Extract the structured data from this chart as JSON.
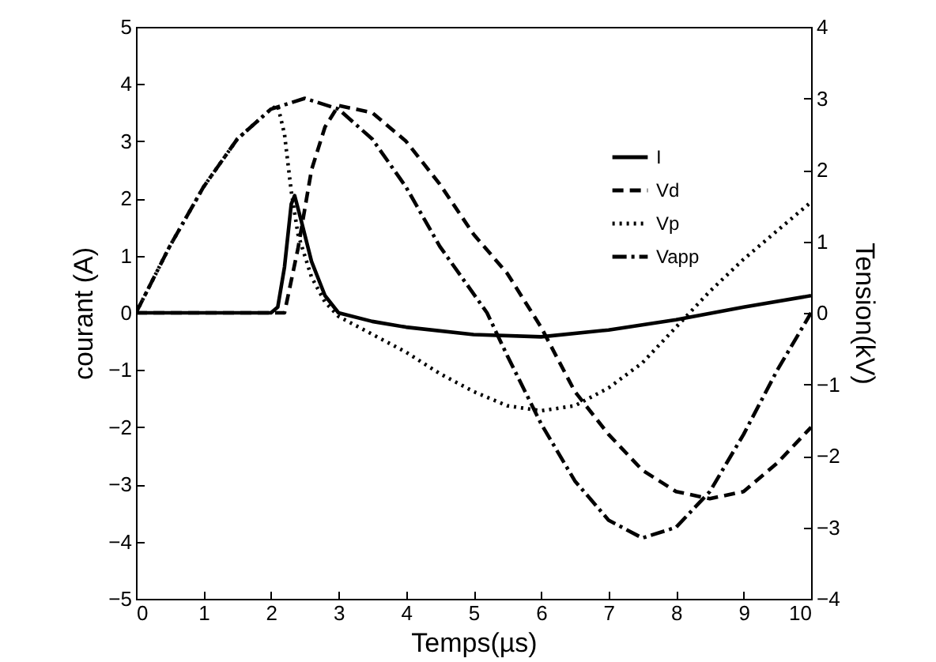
{
  "chart_data": {
    "type": "line",
    "xlabel": "Temps(µs)",
    "ylabel": "courant (A)",
    "y2label": "Tension(kV)",
    "xlim": [
      0,
      10
    ],
    "xticks": [
      0,
      1,
      2,
      3,
      4,
      5,
      6,
      7,
      8,
      9,
      10
    ],
    "ylim": [
      -5,
      5
    ],
    "yticks": [
      -5,
      -4,
      -3,
      -2,
      -1,
      0,
      1,
      2,
      3,
      4,
      5
    ],
    "y2lim": [
      -4,
      4
    ],
    "y2ticks": [
      -4,
      -3,
      -2,
      -1,
      0,
      1,
      2,
      3,
      4
    ],
    "legend": "top right",
    "grid": false,
    "series": [
      {
        "name": "I",
        "color": "#000000",
        "line_style": "solid",
        "x": [
          0,
          1,
          2,
          2.1,
          2.2,
          2.3,
          2.35,
          2.45,
          2.6,
          2.8,
          3.0,
          3.5,
          4,
          5,
          6,
          7,
          8,
          9,
          10
        ],
        "values": [
          0,
          0,
          0,
          0.1,
          0.8,
          1.9,
          2.05,
          1.6,
          0.9,
          0.3,
          0,
          -0.15,
          -0.25,
          -0.38,
          -0.42,
          -0.3,
          -0.12,
          0.1,
          0.3
        ]
      },
      {
        "name": "Vd",
        "color": "#000000",
        "line_style": "dashed",
        "axis": "y2",
        "x": [
          0,
          1,
          2,
          2.2,
          2.4,
          2.6,
          2.8,
          3.0,
          3.5,
          4,
          4.5,
          5,
          5.5,
          6,
          6.5,
          7,
          7.5,
          8,
          8.5,
          9,
          9.5,
          10
        ],
        "values": [
          0,
          0,
          0,
          0,
          0.9,
          2.0,
          2.6,
          2.9,
          2.8,
          2.4,
          1.8,
          1.1,
          0.55,
          -0.2,
          -1.1,
          -1.7,
          -2.2,
          -2.5,
          -2.6,
          -2.5,
          -2.1,
          -1.6
        ]
      },
      {
        "name": "Vp",
        "color": "#000000",
        "line_style": "dotted",
        "axis": "y2",
        "x": [
          0,
          0.5,
          1,
          1.5,
          2,
          2.1,
          2.2,
          2.3,
          2.4,
          2.6,
          2.8,
          3.0,
          3.5,
          4,
          4.5,
          5,
          5.5,
          6,
          6.5,
          7,
          7.5,
          8,
          8.5,
          9,
          9.5,
          10
        ],
        "values": [
          0,
          0.93,
          1.76,
          2.43,
          2.85,
          2.9,
          2.5,
          1.7,
          1.1,
          0.5,
          0.15,
          -0.05,
          -0.3,
          -0.55,
          -0.85,
          -1.1,
          -1.3,
          -1.37,
          -1.3,
          -1.05,
          -0.7,
          -0.2,
          0.3,
          0.75,
          1.15,
          1.55
        ]
      },
      {
        "name": "Vapp",
        "color": "#000000",
        "line_style": "dashdot",
        "axis": "y2",
        "x": [
          0,
          0.5,
          1,
          1.5,
          2,
          2.5,
          3,
          3.5,
          4,
          4.5,
          5.2,
          5.5,
          6,
          6.5,
          7,
          7.5,
          8,
          8.5,
          9,
          9.5,
          10
        ],
        "values": [
          0,
          0.93,
          1.76,
          2.43,
          2.85,
          3.0,
          2.85,
          2.43,
          1.76,
          0.93,
          0,
          -0.6,
          -1.55,
          -2.35,
          -2.9,
          -3.15,
          -3.0,
          -2.5,
          -1.7,
          -0.8,
          0
        ]
      }
    ]
  }
}
